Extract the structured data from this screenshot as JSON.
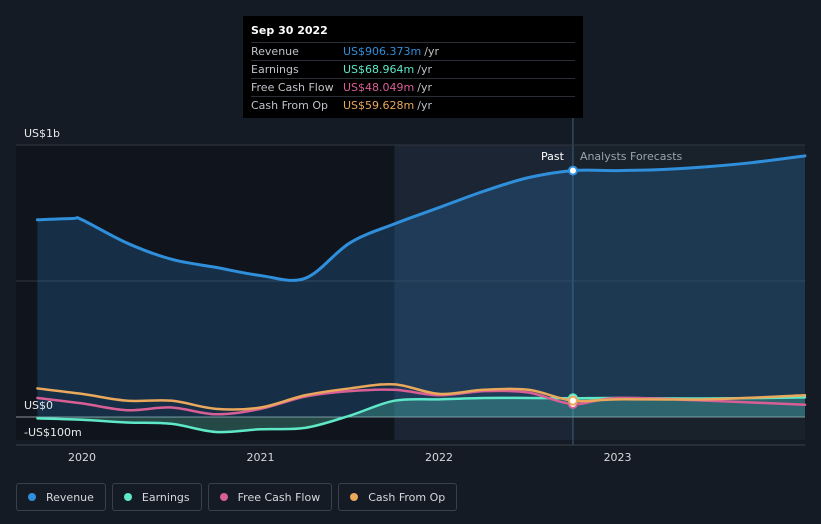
{
  "tooltip": {
    "date": "Sep 30 2022",
    "rows": [
      {
        "label": "Revenue",
        "value": "US$906.373m",
        "unit": "/yr",
        "color": "#2f8fdb"
      },
      {
        "label": "Earnings",
        "value": "US$68.964m",
        "unit": "/yr",
        "color": "#5ee8c7"
      },
      {
        "label": "Free Cash Flow",
        "value": "US$48.049m",
        "unit": "/yr",
        "color": "#d85f96"
      },
      {
        "label": "Cash From Op",
        "value": "US$59.628m",
        "unit": "/yr",
        "color": "#e9a85b"
      }
    ]
  },
  "labels": {
    "past": "Past",
    "forecast": "Analysts Forecasts"
  },
  "legend": [
    {
      "label": "Revenue",
      "color": "#2f8fdb"
    },
    {
      "label": "Earnings",
      "color": "#5ee8c7"
    },
    {
      "label": "Free Cash Flow",
      "color": "#d85f96"
    },
    {
      "label": "Cash From Op",
      "color": "#e9a85b"
    }
  ],
  "chart_data": {
    "type": "line",
    "x_unit": "year",
    "y_unit": "US$m",
    "ylim": [
      -100,
      1000
    ],
    "y_ticks": [
      {
        "value": 1000,
        "label": "US$1b"
      },
      {
        "value": 0,
        "label": "US$0"
      },
      {
        "value": -100,
        "label": "-US$100m"
      }
    ],
    "x_ticks": [
      {
        "value": 2020,
        "label": "2020"
      },
      {
        "value": 2021,
        "label": "2021"
      },
      {
        "value": 2022,
        "label": "2022"
      },
      {
        "value": 2023,
        "label": "2023"
      }
    ],
    "xlim": [
      2019.63,
      2024.05
    ],
    "highlight_start": 2021.75,
    "past_end": 2022.75,
    "series": [
      {
        "name": "Revenue",
        "color": "#2f8fdb",
        "fill": true,
        "points": [
          [
            2019.75,
            725
          ],
          [
            2019.95,
            730
          ],
          [
            2020.0,
            725
          ],
          [
            2020.25,
            640
          ],
          [
            2020.5,
            580
          ],
          [
            2020.75,
            550
          ],
          [
            2021.0,
            520
          ],
          [
            2021.25,
            510
          ],
          [
            2021.5,
            640
          ],
          [
            2021.75,
            710
          ],
          [
            2022.0,
            770
          ],
          [
            2022.25,
            830
          ],
          [
            2022.5,
            880
          ],
          [
            2022.75,
            906
          ],
          [
            2023.0,
            906
          ],
          [
            2023.25,
            910
          ],
          [
            2023.5,
            920
          ],
          [
            2023.75,
            935
          ],
          [
            2024.05,
            960
          ]
        ]
      },
      {
        "name": "Earnings",
        "color": "#5ee8c7",
        "fill": true,
        "points": [
          [
            2019.75,
            -5
          ],
          [
            2020.0,
            -10
          ],
          [
            2020.25,
            -20
          ],
          [
            2020.5,
            -25
          ],
          [
            2020.75,
            -55
          ],
          [
            2021.0,
            -45
          ],
          [
            2021.25,
            -40
          ],
          [
            2021.5,
            5
          ],
          [
            2021.75,
            60
          ],
          [
            2022.0,
            65
          ],
          [
            2022.25,
            70
          ],
          [
            2022.5,
            70
          ],
          [
            2022.75,
            69
          ],
          [
            2023.0,
            70
          ],
          [
            2023.5,
            68
          ],
          [
            2024.05,
            72
          ]
        ]
      },
      {
        "name": "Free Cash Flow",
        "color": "#d85f96",
        "fill": false,
        "points": [
          [
            2019.75,
            70
          ],
          [
            2020.0,
            50
          ],
          [
            2020.25,
            25
          ],
          [
            2020.5,
            35
          ],
          [
            2020.75,
            10
          ],
          [
            2021.0,
            30
          ],
          [
            2021.25,
            75
          ],
          [
            2021.5,
            95
          ],
          [
            2021.75,
            100
          ],
          [
            2022.0,
            80
          ],
          [
            2022.25,
            95
          ],
          [
            2022.5,
            90
          ],
          [
            2022.75,
            48
          ],
          [
            2023.0,
            70
          ],
          [
            2023.5,
            60
          ],
          [
            2024.05,
            45
          ]
        ]
      },
      {
        "name": "Cash From Op",
        "color": "#e9a85b",
        "fill": false,
        "points": [
          [
            2019.75,
            105
          ],
          [
            2020.0,
            85
          ],
          [
            2020.25,
            60
          ],
          [
            2020.5,
            60
          ],
          [
            2020.75,
            30
          ],
          [
            2021.0,
            35
          ],
          [
            2021.25,
            80
          ],
          [
            2021.5,
            105
          ],
          [
            2021.75,
            120
          ],
          [
            2022.0,
            85
          ],
          [
            2022.25,
            100
          ],
          [
            2022.5,
            100
          ],
          [
            2022.75,
            60
          ],
          [
            2023.0,
            65
          ],
          [
            2023.5,
            65
          ],
          [
            2024.05,
            80
          ]
        ]
      }
    ]
  }
}
